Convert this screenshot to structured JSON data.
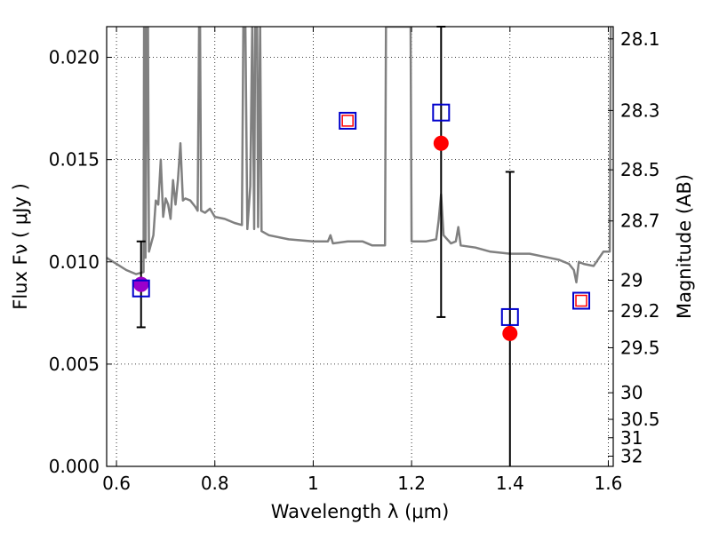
{
  "chart_data": {
    "type": "scatter",
    "xlabel": "Wavelength  λ (μm)",
    "ylabel": "Flux  Fν  ( μJy )",
    "ylabel_right": "Magnitude (AB)",
    "xlim": [
      0.58,
      1.61
    ],
    "ylim": [
      0.0,
      0.0215
    ],
    "grid": true,
    "x_ticks": [
      0.6,
      0.8,
      1.0,
      1.2,
      1.4,
      1.6
    ],
    "x_tick_labels": [
      "0.6",
      "0.8",
      "1",
      "1.2",
      "1.4",
      "1.6"
    ],
    "y_ticks": [
      0.0,
      0.005,
      0.01,
      0.015,
      0.02
    ],
    "y_tick_labels": [
      "0.000",
      "0.005",
      "0.010",
      "0.015",
      "0.020"
    ],
    "mag_ticks": [
      {
        "label": "28.1",
        "flux": 0.0209
      },
      {
        "label": "28.3",
        "flux": 0.0174
      },
      {
        "label": "28.5",
        "flux": 0.0145
      },
      {
        "label": "28.7",
        "flux": 0.012
      },
      {
        "label": "29",
        "flux": 0.0091
      },
      {
        "label": "29.2",
        "flux": 0.0076
      },
      {
        "label": "29.5",
        "flux": 0.0058
      },
      {
        "label": "30",
        "flux": 0.0036
      },
      {
        "label": "30.5",
        "flux": 0.0023
      },
      {
        "label": "31",
        "flux": 0.0014
      },
      {
        "label": "32",
        "flux": 0.0005
      }
    ],
    "spectrum": {
      "color": "#808080",
      "points": [
        [
          0.58,
          0.0102
        ],
        [
          0.6,
          0.0099
        ],
        [
          0.62,
          0.0096
        ],
        [
          0.64,
          0.0094
        ],
        [
          0.655,
          0.0095
        ],
        [
          0.656,
          0.0215
        ],
        [
          0.658,
          0.0215
        ],
        [
          0.659,
          0.0102
        ],
        [
          0.662,
          0.0215
        ],
        [
          0.664,
          0.0215
        ],
        [
          0.666,
          0.0105
        ],
        [
          0.675,
          0.0113
        ],
        [
          0.68,
          0.013
        ],
        [
          0.685,
          0.0128
        ],
        [
          0.69,
          0.015
        ],
        [
          0.695,
          0.0122
        ],
        [
          0.7,
          0.0131
        ],
        [
          0.705,
          0.0128
        ],
        [
          0.71,
          0.0121
        ],
        [
          0.715,
          0.014
        ],
        [
          0.72,
          0.0128
        ],
        [
          0.725,
          0.014
        ],
        [
          0.73,
          0.0158
        ],
        [
          0.735,
          0.013
        ],
        [
          0.74,
          0.0131
        ],
        [
          0.75,
          0.013
        ],
        [
          0.76,
          0.0127
        ],
        [
          0.765,
          0.0125
        ],
        [
          0.768,
          0.0215
        ],
        [
          0.77,
          0.0215
        ],
        [
          0.772,
          0.0125
        ],
        [
          0.78,
          0.0124
        ],
        [
          0.79,
          0.0126
        ],
        [
          0.8,
          0.0122
        ],
        [
          0.82,
          0.0121
        ],
        [
          0.84,
          0.0119
        ],
        [
          0.855,
          0.0118
        ],
        [
          0.858,
          0.0215
        ],
        [
          0.862,
          0.0215
        ],
        [
          0.866,
          0.0116
        ],
        [
          0.872,
          0.0137
        ],
        [
          0.876,
          0.0215
        ],
        [
          0.88,
          0.0116
        ],
        [
          0.882,
          0.0215
        ],
        [
          0.886,
          0.0215
        ],
        [
          0.888,
          0.0117
        ],
        [
          0.892,
          0.0215
        ],
        [
          0.895,
          0.0115
        ],
        [
          0.91,
          0.0113
        ],
        [
          0.95,
          0.0111
        ],
        [
          1.0,
          0.011
        ],
        [
          1.03,
          0.011
        ],
        [
          1.035,
          0.0113
        ],
        [
          1.04,
          0.0109
        ],
        [
          1.07,
          0.011
        ],
        [
          1.1,
          0.011
        ],
        [
          1.12,
          0.0108
        ],
        [
          1.14,
          0.0108
        ],
        [
          1.146,
          0.0108
        ],
        [
          1.148,
          0.0215
        ],
        [
          1.198,
          0.0215
        ],
        [
          1.2,
          0.011
        ],
        [
          1.23,
          0.011
        ],
        [
          1.25,
          0.0111
        ],
        [
          1.255,
          0.012
        ],
        [
          1.26,
          0.0133
        ],
        [
          1.265,
          0.0113
        ],
        [
          1.28,
          0.0109
        ],
        [
          1.29,
          0.011
        ],
        [
          1.295,
          0.0117
        ],
        [
          1.3,
          0.0108
        ],
        [
          1.33,
          0.0107
        ],
        [
          1.36,
          0.0105
        ],
        [
          1.4,
          0.0104
        ],
        [
          1.44,
          0.0104
        ],
        [
          1.48,
          0.0102
        ],
        [
          1.5,
          0.0101
        ],
        [
          1.52,
          0.0099
        ],
        [
          1.53,
          0.0096
        ],
        [
          1.535,
          0.009
        ],
        [
          1.54,
          0.01
        ],
        [
          1.55,
          0.0099
        ],
        [
          1.57,
          0.0098
        ],
        [
          1.59,
          0.0105
        ],
        [
          1.603,
          0.0105
        ],
        [
          1.605,
          0.0215
        ]
      ]
    },
    "model_boxes": {
      "color": "#0000cc",
      "x": [
        0.65,
        1.07,
        1.26,
        1.4,
        1.545
      ],
      "y": [
        0.0087,
        0.0169,
        0.0173,
        0.0073,
        0.0081
      ]
    },
    "model_points": {
      "color": "#ff0000",
      "x": [
        1.07,
        1.545
      ],
      "y": [
        0.0169,
        0.0081
      ]
    },
    "observed": {
      "color": "#ff0000",
      "x": [
        0.65,
        1.26,
        1.4
      ],
      "y": [
        0.0089,
        0.0158,
        0.0065
      ],
      "err_low": [
        0.0068,
        0.0073,
        0.0
      ],
      "err_high": [
        0.011,
        0.0215,
        0.0144
      ]
    },
    "highlight_point": {
      "color": "#9900cc",
      "x": 0.65,
      "y": 0.0089
    }
  }
}
